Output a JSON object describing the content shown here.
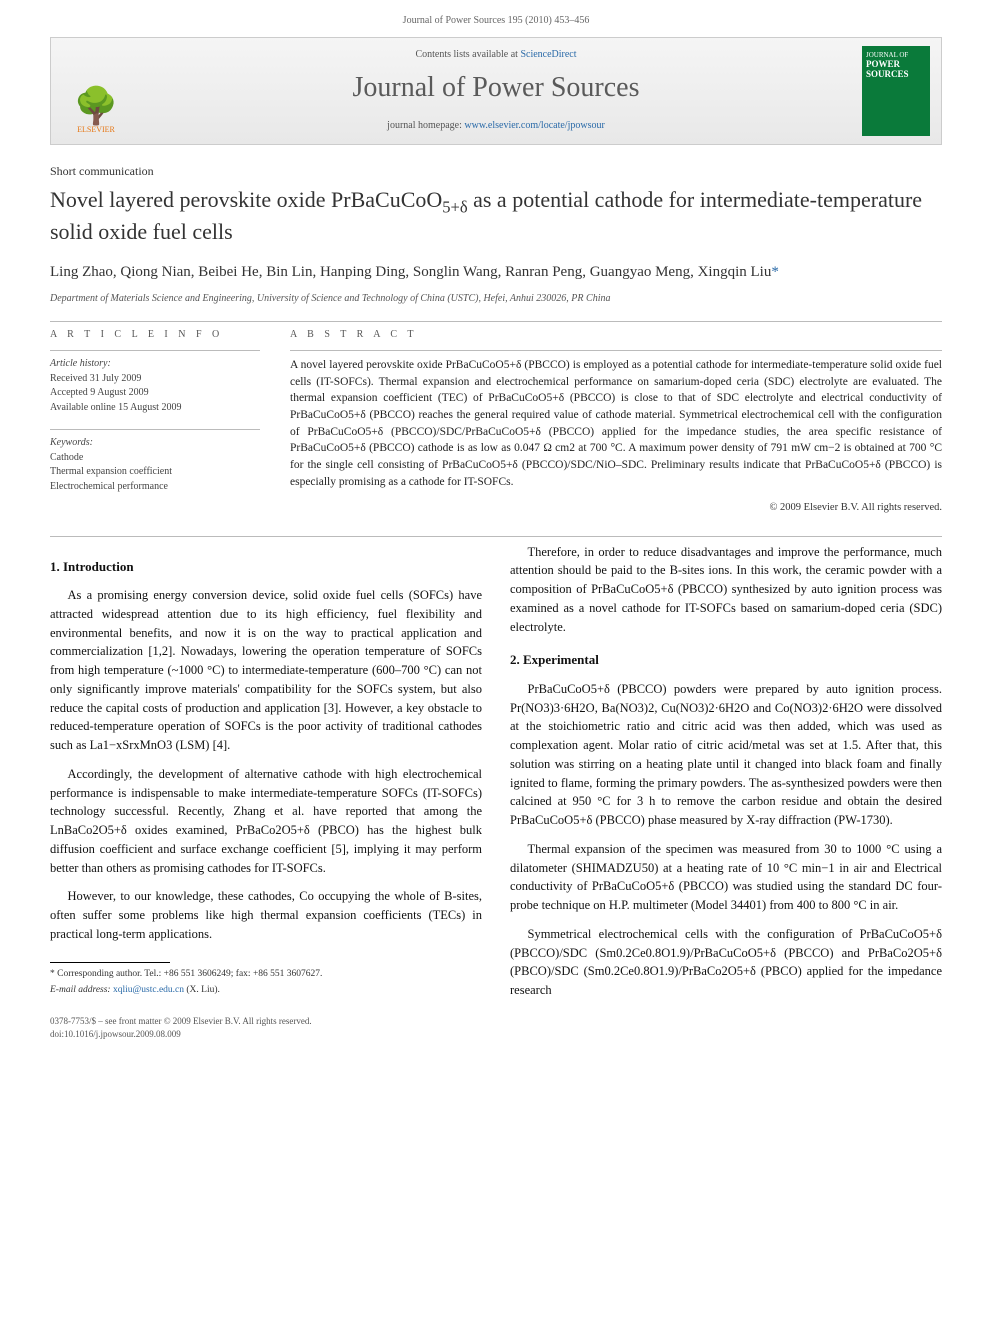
{
  "header": {
    "journal_ref": "Journal of Power Sources 195 (2010) 453–456"
  },
  "banner": {
    "contents_line": "Contents lists available at ",
    "contents_link": "ScienceDirect",
    "journal_name": "Journal of Power Sources",
    "homepage_label": "journal homepage: ",
    "homepage_url": "www.elsevier.com/locate/jpowsour",
    "publisher": "ELSEVIER",
    "cover_label_top": "JOURNAL OF",
    "cover_label_main": "POWER SOURCES"
  },
  "article": {
    "type": "Short communication",
    "title_line1": "Novel layered perovskite oxide PrBaCuCoO",
    "title_sub": "5+δ",
    "title_line2": " as a potential cathode for intermediate-temperature solid oxide fuel cells",
    "authors": "Ling Zhao, Qiong Nian, Beibei He, Bin Lin, Hanping Ding, Songlin Wang, Ranran Peng, Guangyao Meng, Xingqin Liu",
    "corr_mark": "*",
    "affiliation": "Department of Materials Science and Engineering, University of Science and Technology of China (USTC), Hefei, Anhui 230026, PR China"
  },
  "info": {
    "heading_info": "A R T I C L E   I N F O",
    "heading_abs": "A B S T R A C T",
    "history_label": "Article history:",
    "received": "Received 31 July 2009",
    "accepted": "Accepted 9 August 2009",
    "online": "Available online 15 August 2009",
    "keywords_label": "Keywords:",
    "keywords": [
      "Cathode",
      "Thermal expansion coefficient",
      "Electrochemical performance"
    ]
  },
  "abstract": {
    "text": "A novel layered perovskite oxide PrBaCuCoO5+δ (PBCCO) is employed as a potential cathode for intermediate-temperature solid oxide fuel cells (IT-SOFCs). Thermal expansion and electrochemical performance on samarium-doped ceria (SDC) electrolyte are evaluated. The thermal expansion coefficient (TEC) of PrBaCuCoO5+δ (PBCCO) is close to that of SDC electrolyte and electrical conductivity of PrBaCuCoO5+δ (PBCCO) reaches the general required value of cathode material. Symmetrical electrochemical cell with the configuration of PrBaCuCoO5+δ (PBCCO)/SDC/PrBaCuCoO5+δ (PBCCO) applied for the impedance studies, the area specific resistance of PrBaCuCoO5+δ (PBCCO) cathode is as low as 0.047 Ω cm2 at 700 °C. A maximum power density of 791 mW cm−2 is obtained at 700 °C for the single cell consisting of PrBaCuCoO5+δ (PBCCO)/SDC/NiO–SDC. Preliminary results indicate that PrBaCuCoO5+δ (PBCCO) is especially promising as a cathode for IT-SOFCs.",
    "copyright": "© 2009 Elsevier B.V. All rights reserved."
  },
  "body": {
    "sec1_title": "1. Introduction",
    "sec1_p1": "As a promising energy conversion device, solid oxide fuel cells (SOFCs) have attracted widespread attention due to its high efficiency, fuel flexibility and environmental benefits, and now it is on the way to practical application and commercialization [1,2]. Nowadays, lowering the operation temperature of SOFCs from high temperature (~1000 °C) to intermediate-temperature (600–700 °C) can not only significantly improve materials' compatibility for the SOFCs system, but also reduce the capital costs of production and application [3]. However, a key obstacle to reduced-temperature operation of SOFCs is the poor activity of traditional cathodes such as La1−xSrxMnO3 (LSM) [4].",
    "sec1_p2": "Accordingly, the development of alternative cathode with high electrochemical performance is indispensable to make intermediate-temperature SOFCs (IT-SOFCs) technology successful. Recently, Zhang et al. have reported that among the LnBaCo2O5+δ oxides examined, PrBaCo2O5+δ (PBCO) has the highest bulk diffusion coefficient and surface exchange coefficient [5], implying it may perform better than others as promising cathodes for IT-SOFCs.",
    "sec1_p3": "However, to our knowledge, these cathodes, Co occupying the whole of B-sites, often suffer some problems like high thermal expansion coefficients (TECs) in practical long-term applications.",
    "sec1_p4": "Therefore, in order to reduce disadvantages and improve the performance, much attention should be paid to the B-sites ions. In this work, the ceramic powder with a composition of PrBaCuCoO5+δ (PBCCO) synthesized by auto ignition process was examined as a novel cathode for IT-SOFCs based on samarium-doped ceria (SDC) electrolyte.",
    "sec2_title": "2. Experimental",
    "sec2_p1": "PrBaCuCoO5+δ (PBCCO) powders were prepared by auto ignition process. Pr(NO3)3·6H2O, Ba(NO3)2, Cu(NO3)2·6H2O and Co(NO3)2·6H2O were dissolved at the stoichiometric ratio and citric acid was then added, which was used as complexation agent. Molar ratio of citric acid/metal was set at 1.5. After that, this solution was stirring on a heating plate until it changed into black foam and finally ignited to flame, forming the primary powders. The as-synthesized powders were then calcined at 950 °C for 3 h to remove the carbon residue and obtain the desired PrBaCuCoO5+δ (PBCCO) phase measured by X-ray diffraction (PW-1730).",
    "sec2_p2": "Thermal expansion of the specimen was measured from 30 to 1000 °C using a dilatometer (SHIMADZU50) at a heating rate of 10 °C min−1 in air and Electrical conductivity of PrBaCuCoO5+δ (PBCCO) was studied using the standard DC four-probe technique on H.P. multimeter (Model 34401) from 400 to 800 °C in air.",
    "sec2_p3": "Symmetrical electrochemical cells with the configuration of PrBaCuCoO5+δ (PBCCO)/SDC (Sm0.2Ce0.8O1.9)/PrBaCuCoO5+δ (PBCCO) and PrBaCo2O5+δ (PBCO)/SDC (Sm0.2Ce0.8O1.9)/PrBaCo2O5+δ (PBCO) applied for the impedance research"
  },
  "footnotes": {
    "corr": "* Corresponding author. Tel.: +86 551 3606249; fax: +86 551 3607627.",
    "email_label": "E-mail address:",
    "email": "xqliu@ustc.edu.cn",
    "email_who": "(X. Liu)."
  },
  "footer": {
    "line1": "0378-7753/$ – see front matter © 2009 Elsevier B.V. All rights reserved.",
    "line2": "doi:10.1016/j.jpowsour.2009.08.009"
  },
  "colors": {
    "link": "#2a6aa8",
    "elsevier_orange": "#e67817",
    "cover_green": "#0a7a3a",
    "border": "#cccccc",
    "text": "#222222"
  }
}
